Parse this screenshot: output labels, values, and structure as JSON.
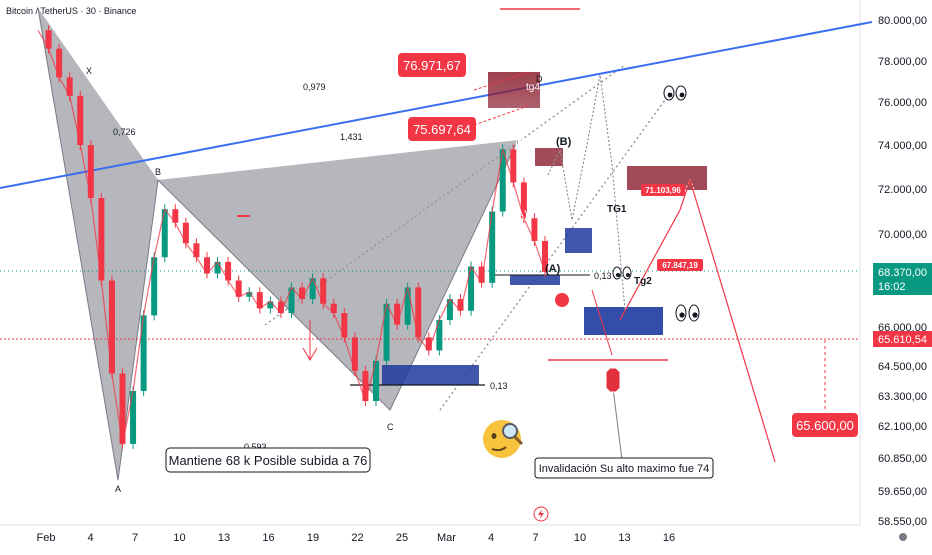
{
  "header": {
    "symbol": "Bitcoin / TetherUS · 30 · Binance"
  },
  "chart_data": {
    "type": "candlestick",
    "title": "",
    "ylim": [
      58550,
      80500
    ],
    "y_ticks": [
      80000,
      78000,
      76000,
      74000,
      72000,
      70000,
      66000,
      64500,
      63300,
      62100,
      60850,
      59650,
      58550
    ],
    "y_tick_labels": [
      "80.000,00",
      "78.000,00",
      "76.000,00",
      "74.000,00",
      "72.000,00",
      "70.000,00",
      "66.000,00",
      "64.500,00",
      "63.300,00",
      "62.100,00",
      "60.850,00",
      "59.650,00",
      "58.550,00"
    ],
    "x_tick_labels": [
      "Feb",
      "4",
      "7",
      "10",
      "13",
      "16",
      "19",
      "22",
      "25",
      "Mar",
      "4",
      "7",
      "10",
      "13",
      "16"
    ],
    "price_series": [
      {
        "t": 0,
        "p": 79500
      },
      {
        "t": 1,
        "p": 78600
      },
      {
        "t": 2,
        "p": 77200
      },
      {
        "t": 3,
        "p": 76300
      },
      {
        "t": 4,
        "p": 74000
      },
      {
        "t": 5,
        "p": 71600
      },
      {
        "t": 6,
        "p": 68000
      },
      {
        "t": 7,
        "p": 64200
      },
      {
        "t": 8,
        "p": 61400
      },
      {
        "t": 9,
        "p": 63500
      },
      {
        "t": 10,
        "p": 66500
      },
      {
        "t": 11,
        "p": 69000
      },
      {
        "t": 12,
        "p": 71100
      },
      {
        "t": 13,
        "p": 70500
      },
      {
        "t": 14,
        "p": 69600
      },
      {
        "t": 15,
        "p": 69000
      },
      {
        "t": 16,
        "p": 68300
      },
      {
        "t": 17,
        "p": 68800
      },
      {
        "t": 18,
        "p": 68000
      },
      {
        "t": 19,
        "p": 67300
      },
      {
        "t": 20,
        "p": 67500
      },
      {
        "t": 21,
        "p": 66800
      },
      {
        "t": 22,
        "p": 67100
      },
      {
        "t": 23,
        "p": 66600
      },
      {
        "t": 24,
        "p": 67700
      },
      {
        "t": 25,
        "p": 67200
      },
      {
        "t": 26,
        "p": 68100
      },
      {
        "t": 27,
        "p": 67000
      },
      {
        "t": 28,
        "p": 66600
      },
      {
        "t": 29,
        "p": 65600
      },
      {
        "t": 30,
        "p": 64300
      },
      {
        "t": 31,
        "p": 63100
      },
      {
        "t": 32,
        "p": 64700
      },
      {
        "t": 33,
        "p": 67000
      },
      {
        "t": 34,
        "p": 66100
      },
      {
        "t": 35,
        "p": 67700
      },
      {
        "t": 36,
        "p": 65600
      },
      {
        "t": 37,
        "p": 65100
      },
      {
        "t": 38,
        "p": 66300
      },
      {
        "t": 39,
        "p": 67200
      },
      {
        "t": 40,
        "p": 66700
      },
      {
        "t": 41,
        "p": 68600
      },
      {
        "t": 42,
        "p": 67900
      },
      {
        "t": 43,
        "p": 71000
      },
      {
        "t": 44,
        "p": 73800
      },
      {
        "t": 45,
        "p": 72300
      },
      {
        "t": 46,
        "p": 70700
      },
      {
        "t": 47,
        "p": 69700
      },
      {
        "t": 48,
        "p": 68370
      }
    ],
    "current_price": {
      "label": "68.370,00",
      "time": "16:02",
      "value": 68370
    },
    "marked_price": {
      "label": "65.610,54",
      "value": 65610.54
    },
    "callouts": [
      {
        "text": "76.971,67",
        "value": 76971.67
      },
      {
        "text": "75.697,64",
        "value": 75697.64
      },
      {
        "text": "65.600,00",
        "value": 65600
      }
    ],
    "targets": [
      {
        "text": "71.103,96",
        "value": 71103.96
      },
      {
        "text": "67.847,19",
        "value": 67847.19
      }
    ],
    "pattern_points": {
      "X": "X",
      "A": "A",
      "B": "B",
      "C": "C",
      "D": "D"
    },
    "fib_ratios": [
      "0,979",
      "0,726",
      "1,431",
      "0,13",
      "0,13",
      "0,593"
    ],
    "wave_labels": [
      "(B)",
      "(A)",
      "(C)",
      "(B)",
      "(A)",
      "tg4",
      "TG1",
      "Tg2"
    ],
    "colors": {
      "trendline": "#3b6ef2",
      "bearish_zone": "#8b1e2e",
      "bullish_zone": "#1e3a9e",
      "callout": "#f23645",
      "price_tag": "#089981",
      "candle_up": "#089981",
      "candle_down": "#f23645"
    }
  },
  "annotations": {
    "mantiene": "Mantiene 68 k Posible subida a 76",
    "invalidacion": "Invalidación Su alto maximo fue 74"
  },
  "icons": [
    "eyes-icon",
    "eyes-icon",
    "eyes-icon",
    "thinking-face-icon",
    "lightning-icon",
    "tradingview-logo-icon"
  ]
}
